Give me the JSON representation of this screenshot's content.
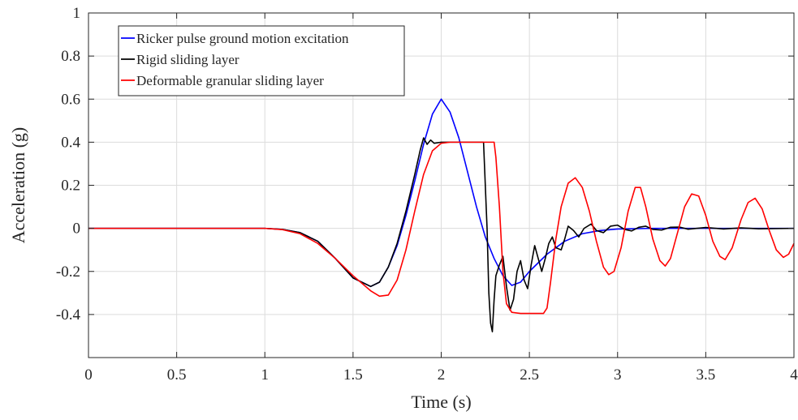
{
  "chart_data": {
    "type": "line",
    "xlabel": "Time (s)",
    "ylabel": "Acceleration (g)",
    "xlim": [
      0,
      4
    ],
    "ylim": [
      -0.6,
      1.0
    ],
    "xticks": [
      0,
      0.5,
      1,
      1.5,
      2,
      2.5,
      3,
      3.5,
      4
    ],
    "xtick_labels": [
      "0",
      "0.5",
      "1",
      "1.5",
      "2",
      "2.5",
      "3",
      "3.5",
      "4"
    ],
    "yticks": [
      -0.4,
      -0.2,
      0,
      0.2,
      0.4,
      0.6,
      0.8,
      1.0
    ],
    "ytick_labels": [
      "-0.4",
      "-0.2",
      "0",
      "0.2",
      "0.4",
      "0.6",
      "0.8",
      "1"
    ],
    "grid": true,
    "legend_position": "top-left",
    "series": [
      {
        "name": "Ricker pulse ground motion excitation",
        "color": "#0000ff",
        "points": [
          [
            0,
            0
          ],
          [
            1.0,
            0
          ],
          [
            1.1,
            -0.005
          ],
          [
            1.2,
            -0.02
          ],
          [
            1.3,
            -0.06
          ],
          [
            1.4,
            -0.14
          ],
          [
            1.5,
            -0.23
          ],
          [
            1.6,
            -0.27
          ],
          [
            1.65,
            -0.25
          ],
          [
            1.7,
            -0.18
          ],
          [
            1.75,
            -0.08
          ],
          [
            1.8,
            0.06
          ],
          [
            1.85,
            0.22
          ],
          [
            1.9,
            0.39
          ],
          [
            1.95,
            0.53
          ],
          [
            2.0,
            0.6
          ],
          [
            2.05,
            0.54
          ],
          [
            2.1,
            0.42
          ],
          [
            2.15,
            0.26
          ],
          [
            2.2,
            0.1
          ],
          [
            2.25,
            -0.04
          ],
          [
            2.3,
            -0.14
          ],
          [
            2.35,
            -0.22
          ],
          [
            2.4,
            -0.265
          ],
          [
            2.45,
            -0.25
          ],
          [
            2.5,
            -0.2
          ],
          [
            2.6,
            -0.12
          ],
          [
            2.7,
            -0.06
          ],
          [
            2.8,
            -0.025
          ],
          [
            2.9,
            -0.01
          ],
          [
            3.0,
            -0.003
          ],
          [
            3.2,
            0
          ],
          [
            4.0,
            0
          ]
        ]
      },
      {
        "name": "Rigid sliding layer",
        "color": "#000000",
        "points": [
          [
            0,
            0
          ],
          [
            1.0,
            0
          ],
          [
            1.1,
            -0.005
          ],
          [
            1.2,
            -0.02
          ],
          [
            1.3,
            -0.06
          ],
          [
            1.4,
            -0.14
          ],
          [
            1.5,
            -0.23
          ],
          [
            1.6,
            -0.27
          ],
          [
            1.65,
            -0.25
          ],
          [
            1.7,
            -0.18
          ],
          [
            1.75,
            -0.07
          ],
          [
            1.8,
            0.08
          ],
          [
            1.85,
            0.25
          ],
          [
            1.88,
            0.36
          ],
          [
            1.9,
            0.42
          ],
          [
            1.92,
            0.39
          ],
          [
            1.94,
            0.41
          ],
          [
            1.96,
            0.395
          ],
          [
            2.0,
            0.4
          ],
          [
            2.24,
            0.4
          ],
          [
            2.26,
            0.0
          ],
          [
            2.27,
            -0.3
          ],
          [
            2.28,
            -0.44
          ],
          [
            2.29,
            -0.48
          ],
          [
            2.3,
            -0.33
          ],
          [
            2.31,
            -0.22
          ],
          [
            2.33,
            -0.17
          ],
          [
            2.35,
            -0.13
          ],
          [
            2.37,
            -0.27
          ],
          [
            2.39,
            -0.38
          ],
          [
            2.41,
            -0.33
          ],
          [
            2.43,
            -0.2
          ],
          [
            2.45,
            -0.15
          ],
          [
            2.47,
            -0.24
          ],
          [
            2.49,
            -0.28
          ],
          [
            2.51,
            -0.17
          ],
          [
            2.53,
            -0.08
          ],
          [
            2.55,
            -0.14
          ],
          [
            2.57,
            -0.2
          ],
          [
            2.59,
            -0.14
          ],
          [
            2.61,
            -0.07
          ],
          [
            2.63,
            -0.04
          ],
          [
            2.65,
            -0.09
          ],
          [
            2.68,
            -0.1
          ],
          [
            2.7,
            -0.05
          ],
          [
            2.72,
            0.01
          ],
          [
            2.75,
            -0.01
          ],
          [
            2.78,
            -0.04
          ],
          [
            2.81,
            0.0
          ],
          [
            2.85,
            0.02
          ],
          [
            2.88,
            -0.01
          ],
          [
            2.92,
            -0.02
          ],
          [
            2.96,
            0.01
          ],
          [
            3.0,
            0.015
          ],
          [
            3.04,
            -0.005
          ],
          [
            3.08,
            -0.012
          ],
          [
            3.12,
            0.005
          ],
          [
            3.16,
            0.01
          ],
          [
            3.2,
            -0.005
          ],
          [
            3.25,
            -0.008
          ],
          [
            3.3,
            0.005
          ],
          [
            3.35,
            0.006
          ],
          [
            3.4,
            -0.004
          ],
          [
            3.5,
            0.004
          ],
          [
            3.6,
            -0.003
          ],
          [
            3.7,
            0.002
          ],
          [
            3.8,
            -0.002
          ],
          [
            4.0,
            0
          ]
        ]
      },
      {
        "name": "Deformable granular sliding layer",
        "color": "#ff0000",
        "points": [
          [
            0,
            0
          ],
          [
            1.0,
            0
          ],
          [
            1.1,
            -0.006
          ],
          [
            1.2,
            -0.025
          ],
          [
            1.3,
            -0.07
          ],
          [
            1.4,
            -0.14
          ],
          [
            1.5,
            -0.22
          ],
          [
            1.6,
            -0.29
          ],
          [
            1.65,
            -0.315
          ],
          [
            1.7,
            -0.31
          ],
          [
            1.75,
            -0.24
          ],
          [
            1.8,
            -0.1
          ],
          [
            1.85,
            0.08
          ],
          [
            1.9,
            0.25
          ],
          [
            1.95,
            0.36
          ],
          [
            2.0,
            0.395
          ],
          [
            2.05,
            0.4
          ],
          [
            2.3,
            0.4
          ],
          [
            2.31,
            0.33
          ],
          [
            2.33,
            0.1
          ],
          [
            2.35,
            -0.2
          ],
          [
            2.37,
            -0.35
          ],
          [
            2.4,
            -0.39
          ],
          [
            2.45,
            -0.395
          ],
          [
            2.58,
            -0.395
          ],
          [
            2.6,
            -0.37
          ],
          [
            2.62,
            -0.25
          ],
          [
            2.65,
            -0.05
          ],
          [
            2.68,
            0.1
          ],
          [
            2.72,
            0.21
          ],
          [
            2.76,
            0.235
          ],
          [
            2.8,
            0.19
          ],
          [
            2.84,
            0.08
          ],
          [
            2.88,
            -0.06
          ],
          [
            2.92,
            -0.18
          ],
          [
            2.95,
            -0.215
          ],
          [
            2.98,
            -0.2
          ],
          [
            3.02,
            -0.09
          ],
          [
            3.06,
            0.08
          ],
          [
            3.1,
            0.19
          ],
          [
            3.13,
            0.19
          ],
          [
            3.16,
            0.1
          ],
          [
            3.2,
            -0.05
          ],
          [
            3.24,
            -0.15
          ],
          [
            3.27,
            -0.175
          ],
          [
            3.3,
            -0.14
          ],
          [
            3.34,
            -0.02
          ],
          [
            3.38,
            0.1
          ],
          [
            3.42,
            0.16
          ],
          [
            3.46,
            0.15
          ],
          [
            3.5,
            0.06
          ],
          [
            3.54,
            -0.06
          ],
          [
            3.58,
            -0.13
          ],
          [
            3.61,
            -0.145
          ],
          [
            3.65,
            -0.09
          ],
          [
            3.7,
            0.04
          ],
          [
            3.74,
            0.12
          ],
          [
            3.78,
            0.14
          ],
          [
            3.82,
            0.09
          ],
          [
            3.86,
            -0.01
          ],
          [
            3.9,
            -0.1
          ],
          [
            3.94,
            -0.135
          ],
          [
            3.97,
            -0.12
          ],
          [
            4.0,
            -0.07
          ]
        ]
      }
    ]
  }
}
